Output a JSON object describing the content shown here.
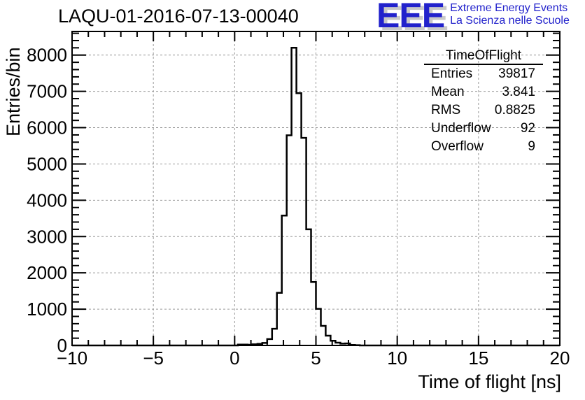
{
  "pad_title": "LAQU-01-2016-07-13-00040",
  "logo": {
    "letters": "EEE",
    "line1": "Extreme Energy Events",
    "line2": "La Scienza nelle Scuole",
    "text_color": "#2222cc",
    "shadow_color": "#c9c9c9"
  },
  "stats": {
    "title": "TimeOfFlight",
    "rows": [
      {
        "label": "Entries",
        "value": "39817"
      },
      {
        "label": "Mean",
        "value": "3.841"
      },
      {
        "label": "RMS",
        "value": "0.8825"
      },
      {
        "label": "Underflow",
        "value": "92"
      },
      {
        "label": "Overflow",
        "value": "9"
      }
    ]
  },
  "chart_data": {
    "type": "bar",
    "subtype": "step-histogram",
    "title": "LAQU-01-2016-07-13-00040",
    "xlabel": "Time of flight [ns]",
    "ylabel": "Entries/bin",
    "x_range": [
      -10,
      20
    ],
    "y_range": [
      0,
      8650
    ],
    "grid": true,
    "grid_color": "#9a9a9a",
    "line_color": "#000000",
    "x_major_ticks": [
      -10,
      -5,
      0,
      5,
      10,
      15,
      20
    ],
    "x_tick_labels": [
      "−10",
      "−5",
      "0",
      "5",
      "10",
      "15",
      "20"
    ],
    "x_minor_step": 1,
    "y_major_ticks": [
      0,
      1000,
      2000,
      3000,
      4000,
      5000,
      6000,
      7000,
      8000
    ],
    "y_tick_labels": [
      "0",
      "1000",
      "2000",
      "3000",
      "4000",
      "5000",
      "6000",
      "7000",
      "8000"
    ],
    "y_minor_step": 200,
    "bins": {
      "first_bin_x": 0.2,
      "bin_width": 0.3,
      "values": [
        25,
        25,
        20,
        30,
        45,
        70,
        175,
        460,
        1450,
        3580,
        5790,
        8202,
        6950,
        5720,
        3200,
        1750,
        1010,
        540,
        270,
        130,
        77,
        50,
        55,
        15,
        8
      ]
    }
  }
}
